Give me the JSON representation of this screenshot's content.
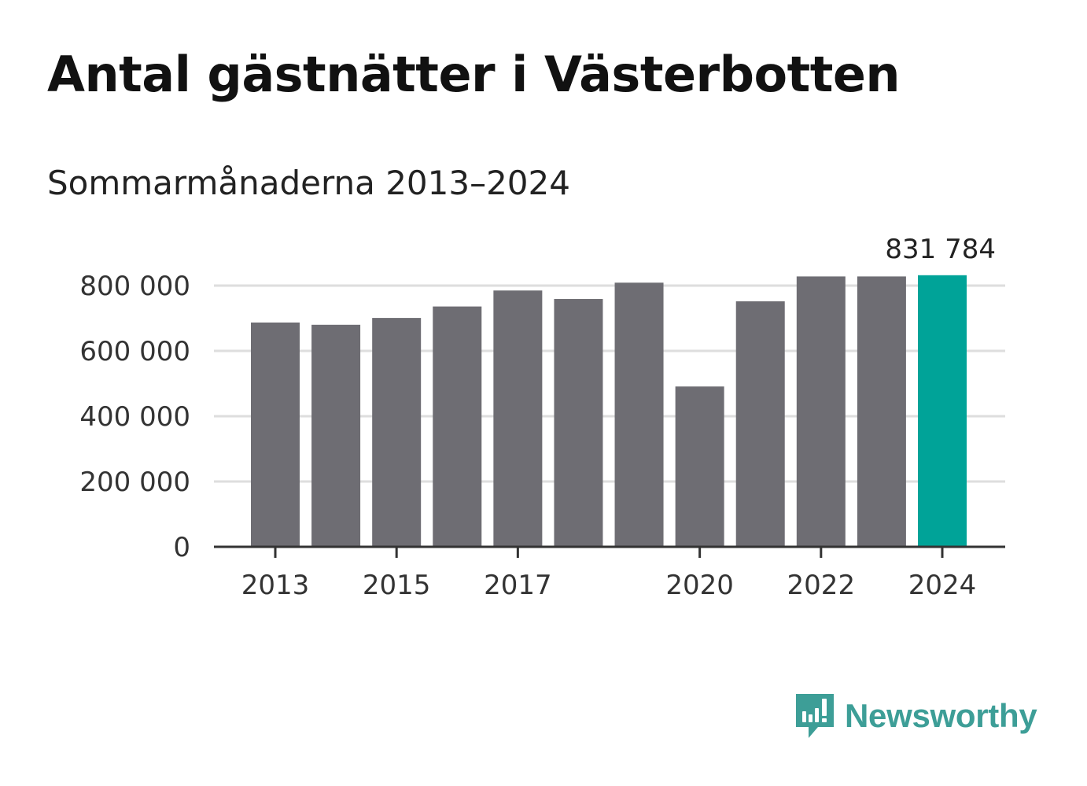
{
  "chart_data": {
    "type": "bar",
    "title": "Antal gästnätter i Västerbotten",
    "subtitle": "Sommarmånaderna 2013–2024",
    "categories": [
      "2013",
      "2014",
      "2015",
      "2016",
      "2017",
      "2018",
      "2019",
      "2020",
      "2021",
      "2022",
      "2023",
      "2024"
    ],
    "values": [
      687000,
      680000,
      701000,
      736000,
      785000,
      759000,
      809000,
      491000,
      752000,
      828000,
      828000,
      831784
    ],
    "highlight_index": 11,
    "highlight_label": "831 784",
    "x_tick_labels": [
      "2013",
      "2015",
      "2017",
      "2020",
      "2022",
      "2024"
    ],
    "y_ticks": [
      0,
      200000,
      400000,
      600000,
      800000
    ],
    "y_tick_labels": [
      "0",
      "200 000",
      "400 000",
      "600 000",
      "800 000"
    ],
    "ylim": [
      0,
      800000
    ],
    "grid": true,
    "colors": {
      "bar": "#6e6d73",
      "highlight": "#00a398",
      "grid": "#dedede",
      "axis": "#333333"
    }
  },
  "brand": {
    "name": "Newsworthy",
    "icon": "newsworthy-logo-icon",
    "color": "#3d9e97"
  }
}
